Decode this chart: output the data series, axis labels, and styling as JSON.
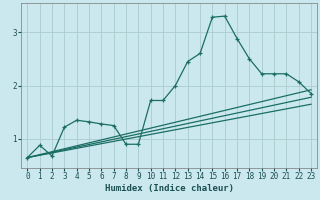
{
  "xlabel": "Humidex (Indice chaleur)",
  "background_color": "#cce8ef",
  "grid_color": "#aacccc",
  "line_color": "#1a6e64",
  "xlim": [
    -0.5,
    23.5
  ],
  "ylim": [
    0.45,
    3.55
  ],
  "xticks": [
    0,
    1,
    2,
    3,
    4,
    5,
    6,
    7,
    8,
    9,
    10,
    11,
    12,
    13,
    14,
    15,
    16,
    17,
    18,
    19,
    20,
    21,
    22,
    23
  ],
  "yticks": [
    1,
    2,
    3
  ],
  "curve1_x": [
    0,
    1,
    2,
    3,
    4,
    5,
    6,
    7,
    8,
    9,
    10,
    11,
    12,
    13,
    14,
    15,
    16,
    17,
    18,
    19,
    20,
    21,
    22,
    23
  ],
  "curve1_y": [
    0.65,
    0.88,
    0.68,
    1.22,
    1.35,
    1.32,
    1.28,
    1.25,
    0.9,
    0.9,
    1.72,
    1.72,
    2.0,
    2.45,
    2.6,
    3.28,
    3.3,
    2.88,
    2.5,
    2.22,
    2.22,
    2.22,
    2.07,
    1.85
  ],
  "curve2_x": [
    0,
    23
  ],
  "curve2_y": [
    0.65,
    1.65
  ],
  "curve3_x": [
    0,
    23
  ],
  "curve3_y": [
    0.65,
    1.78
  ],
  "curve4_x": [
    0,
    23
  ],
  "curve4_y": [
    0.65,
    1.92
  ]
}
